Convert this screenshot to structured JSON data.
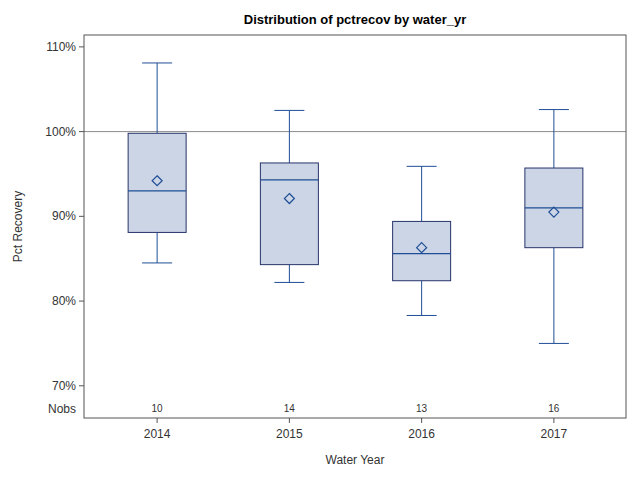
{
  "chart_data": {
    "type": "box",
    "title": "Distribution of pctrecov by water_yr",
    "x_label": "Water Year",
    "y_label": "Pct Recovery",
    "categories": [
      "2014",
      "2015",
      "2016",
      "2017"
    ],
    "whisker_low": [
      84.5,
      82.2,
      78.3,
      75.0
    ],
    "q1": [
      88.1,
      84.3,
      82.4,
      86.3
    ],
    "median": [
      93.0,
      94.3,
      85.6,
      91.0
    ],
    "q3": [
      99.8,
      96.3,
      89.4,
      95.7
    ],
    "whisker_high": [
      108.1,
      102.5,
      95.9,
      102.6
    ],
    "mean": [
      94.2,
      92.1,
      86.3,
      90.5
    ],
    "nobs_label": "Nobs",
    "nobs": [
      10,
      14,
      13,
      16
    ],
    "refline": 100,
    "color": "#cbd5e6",
    "marker": "diamond",
    "grid": false,
    "ylim": [
      66.2,
      111.4
    ],
    "yticks": [
      {
        "value": 70,
        "label": "70%"
      },
      {
        "value": 80,
        "label": "80%"
      },
      {
        "value": 90,
        "label": "90%"
      },
      {
        "value": 100,
        "label": "100%"
      },
      {
        "value": 110,
        "label": "110%"
      }
    ]
  }
}
